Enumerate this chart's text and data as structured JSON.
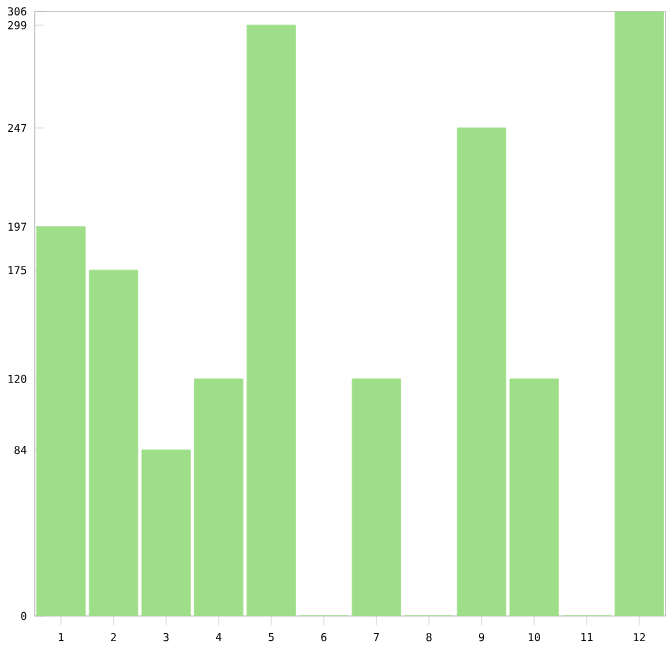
{
  "chart_data": {
    "type": "bar",
    "categories": [
      "1",
      "2",
      "3",
      "4",
      "5",
      "6",
      "7",
      "8",
      "9",
      "10",
      "11",
      "12"
    ],
    "values": [
      197,
      175,
      84,
      120,
      299,
      0,
      120,
      0,
      247,
      120,
      0,
      306
    ],
    "color": "#9ede88",
    "ylim": [
      0,
      306
    ],
    "yticks": [
      0,
      84,
      120,
      175,
      197,
      247,
      299,
      306
    ],
    "grid": false
  }
}
